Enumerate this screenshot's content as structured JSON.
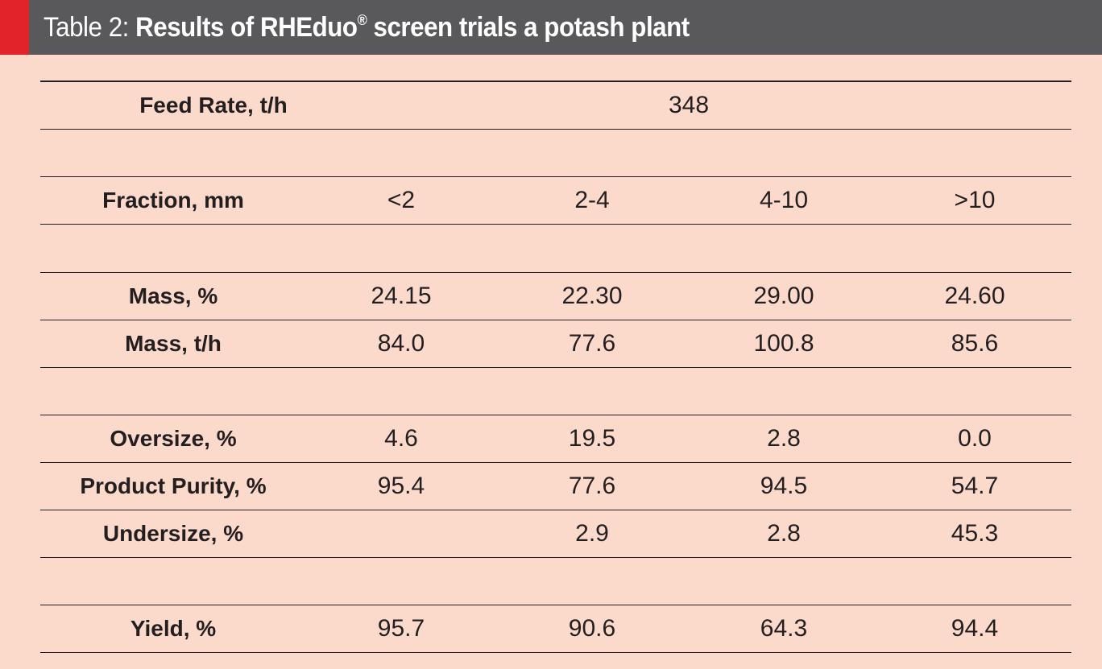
{
  "header": {
    "prefix": "Table 2:",
    "title": "Results of RHEduo",
    "registered": "®",
    "title_rest": "screen trials a potash plant",
    "accent_color": "#e3232a",
    "bar_color": "#59595b",
    "background_color": "#fbd9cb"
  },
  "table": {
    "feed_rate": {
      "label": "Feed Rate, t/h",
      "value": "348"
    },
    "fraction": {
      "label": "Fraction, mm",
      "values": [
        "<2",
        "2-4",
        "4-10",
        ">10"
      ]
    },
    "mass_pct": {
      "label": "Mass, %",
      "values": [
        "24.15",
        "22.30",
        "29.00",
        "24.60"
      ]
    },
    "mass_th": {
      "label": "Mass, t/h",
      "values": [
        "84.0",
        "77.6",
        "100.8",
        "85.6"
      ]
    },
    "oversize": {
      "label": "Oversize, %",
      "values": [
        "4.6",
        "19.5",
        "2.8",
        "0.0"
      ]
    },
    "purity": {
      "label": "Product Purity, %",
      "values": [
        "95.4",
        "77.6",
        "94.5",
        "54.7"
      ]
    },
    "undersize": {
      "label": "Undersize, %",
      "values": [
        "",
        "2.9",
        "2.8",
        "45.3"
      ]
    },
    "yield": {
      "label": "Yield, %",
      "values": [
        "95.7",
        "90.6",
        "64.3",
        "94.4"
      ]
    }
  }
}
